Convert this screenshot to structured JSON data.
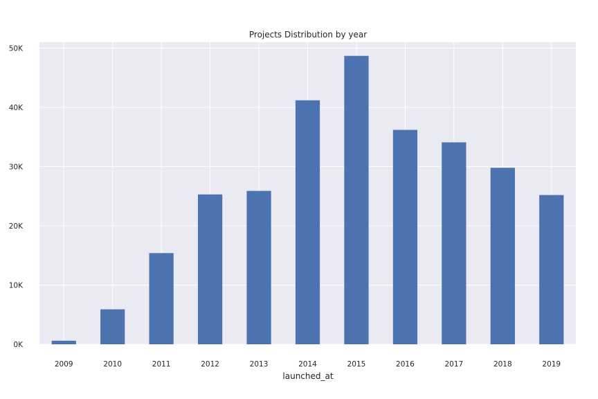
{
  "chart_data": {
    "type": "bar",
    "title": "Projects Distribution by year",
    "xlabel": "launched_at",
    "ylabel": "",
    "categories": [
      "2009",
      "2010",
      "2011",
      "2012",
      "2013",
      "2014",
      "2015",
      "2016",
      "2017",
      "2018",
      "2019"
    ],
    "values": [
      600,
      5900,
      15400,
      25300,
      25900,
      41200,
      48700,
      36200,
      34100,
      29800,
      25200
    ],
    "ylim": [
      0,
      51000
    ],
    "yticks": [
      0,
      10000,
      20000,
      30000,
      40000,
      50000
    ],
    "ytick_labels": [
      "0K",
      "10K",
      "20K",
      "30K",
      "40K",
      "50K"
    ],
    "grid": true,
    "legend": "none",
    "colors": {
      "bar": "#4c72b0",
      "background": "#eaeaf2",
      "grid": "#ffffff"
    }
  }
}
